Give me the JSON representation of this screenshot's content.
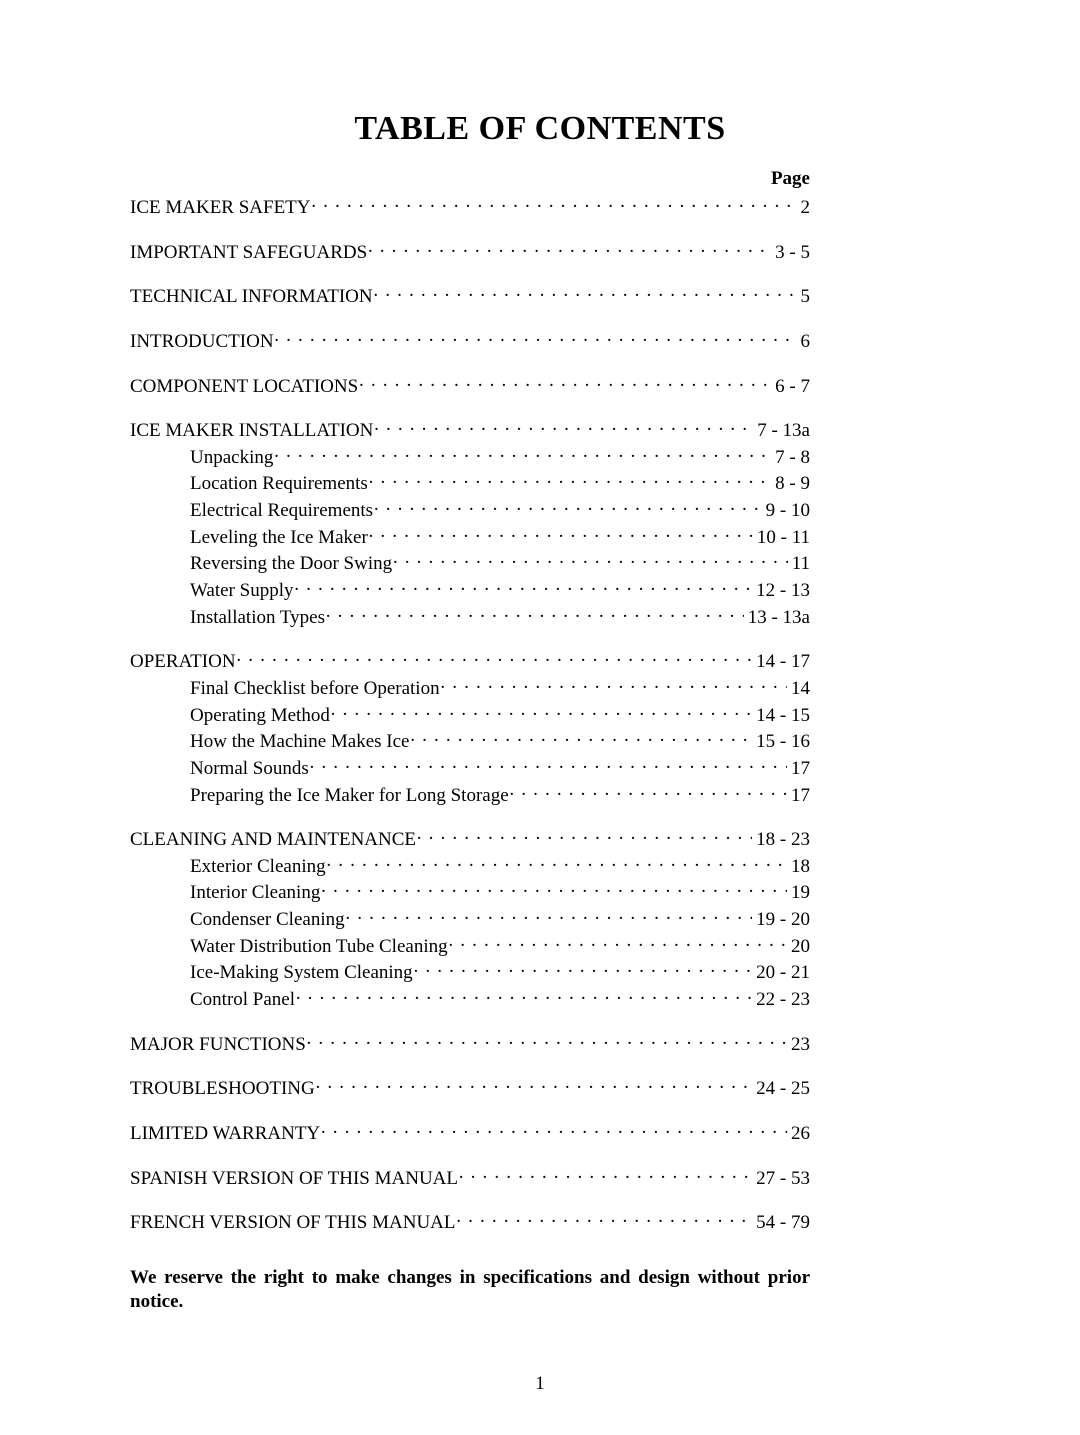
{
  "title": "TABLE OF CONTENTS",
  "page_label": "Page",
  "sections": [
    {
      "label": "ICE MAKER SAFETY",
      "page": "2",
      "subs": []
    },
    {
      "label": "IMPORTANT SAFEGUARDS",
      "page": "3 - 5",
      "subs": []
    },
    {
      "label": "TECHNICAL INFORMATION",
      "page": "5",
      "subs": []
    },
    {
      "label": "INTRODUCTION",
      "page": "6",
      "subs": []
    },
    {
      "label": "COMPONENT LOCATIONS",
      "page": "6 - 7",
      "subs": []
    },
    {
      "label": "ICE MAKER INSTALLATION",
      "page": "7 - 13a",
      "subs": [
        {
          "label": "Unpacking",
          "page": "7 - 8"
        },
        {
          "label": "Location Requirements",
          "page": "8 - 9"
        },
        {
          "label": "Electrical Requirements",
          "page": "9 - 10"
        },
        {
          "label": "Leveling the Ice Maker",
          "page": "10 - 11"
        },
        {
          "label": "Reversing the Door Swing",
          "page": "11"
        },
        {
          "label": "Water Supply",
          "page": "12 - 13"
        },
        {
          "label": "Installation Types",
          "page": "13 - 13a"
        }
      ]
    },
    {
      "label": "OPERATION",
      "page": "14 - 17",
      "subs": [
        {
          "label": "Final Checklist before Operation",
          "page": "14"
        },
        {
          "label": "Operating Method",
          "page": "14 - 15"
        },
        {
          "label": "How the Machine Makes Ice",
          "page": "15 - 16"
        },
        {
          "label": "Normal Sounds",
          "page": "17"
        },
        {
          "label": "Preparing the Ice Maker for Long Storage",
          "page": "17"
        }
      ]
    },
    {
      "label": "CLEANING AND MAINTENANCE",
      "page": "18 - 23",
      "subs": [
        {
          "label": "Exterior Cleaning",
          "page": "18"
        },
        {
          "label": "Interior Cleaning",
          "page": "19"
        },
        {
          "label": "Condenser Cleaning",
          "page": "19 - 20"
        },
        {
          "label": "Water Distribution Tube Cleaning",
          "page": "20"
        },
        {
          "label": "Ice-Making System Cleaning",
          "page": "20 - 21"
        },
        {
          "label": "Control Panel",
          "page": "22 - 23"
        }
      ]
    },
    {
      "label": "MAJOR FUNCTIONS",
      "page": "23",
      "subs": []
    },
    {
      "label": "TROUBLESHOOTING",
      "page": "24 - 25",
      "subs": []
    },
    {
      "label": "LIMITED WARRANTY",
      "page": "26",
      "subs": []
    },
    {
      "label": "SPANISH VERSION OF THIS MANUAL",
      "page": "27 - 53",
      "subs": []
    },
    {
      "label": "FRENCH VERSION OF THIS MANUAL",
      "page": "54 - 79",
      "subs": []
    }
  ],
  "disclaimer": "We reserve the right to make changes in specifications and design without prior notice.",
  "footer_page": "1",
  "colors": {
    "background": "#ffffff",
    "text": "#000000"
  },
  "fonts": {
    "family": "Times New Roman",
    "title_size": 34,
    "body_size": 19
  }
}
